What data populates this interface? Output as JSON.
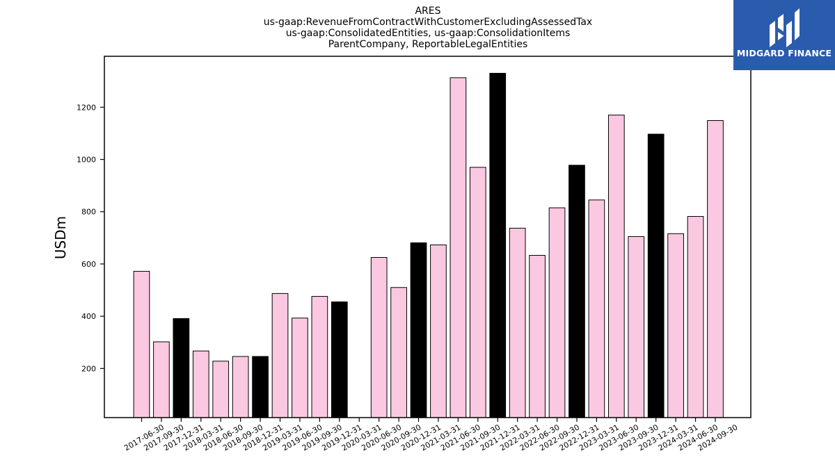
{
  "title_lines": [
    "ARES",
    "us-gaap:RevenueFromContractWithCustomerExcludingAssessedTax",
    "us-gaap:ConsolidatedEntities, us-gaap:ConsolidationItems",
    "ParentCompany, ReportableLegalEntities"
  ],
  "logo": {
    "text": "MIDGARD FINANCE",
    "bg_color": "#2a5cae",
    "icon": "midgard-logo-icon"
  },
  "chart_data": {
    "type": "bar",
    "title": "ARES\nus-gaap:RevenueFromContractWithCustomerExcludingAssessedTax\nus-gaap:ConsolidatedEntities, us-gaap:ConsolidationItems\nParentCompany, ReportableLegalEntities",
    "ylabel": "USDm",
    "xlabel": "",
    "ylim": [
      12,
      1395
    ],
    "yticks": [
      200,
      400,
      600,
      800,
      1000,
      1200
    ],
    "grid": false,
    "legend": "none",
    "colors": {
      "quarter": "#fbc8e1",
      "year_end": "#000000",
      "edge": "#000000"
    },
    "categories": [
      "2017-06-30",
      "2017-09-30",
      "2017-12-31",
      "2018-03-31",
      "2018-06-30",
      "2018-09-30",
      "2018-12-31",
      "2019-03-31",
      "2019-06-30",
      "2019-09-30",
      "2019-12-31",
      "2020-03-31",
      "2020-06-30",
      "2020-09-30",
      "2020-12-31",
      "2021-03-31",
      "2021-06-30",
      "2021-09-30",
      "2021-12-31",
      "2022-03-31",
      "2022-06-30",
      "2022-09-30",
      "2022-12-31",
      "2023-03-31",
      "2023-06-30",
      "2023-09-30",
      "2023-12-31",
      "2024-03-31",
      "2024-06-30",
      "2024-09-30"
    ],
    "values": [
      572,
      302,
      391,
      267,
      228,
      246,
      246,
      487,
      393,
      476,
      455,
      null,
      625,
      510,
      681,
      673,
      1313,
      970,
      1330,
      737,
      633,
      815,
      978,
      845,
      1170,
      705,
      1097,
      716,
      782,
      1149
    ],
    "year_end": [
      false,
      false,
      true,
      false,
      false,
      false,
      true,
      false,
      false,
      false,
      true,
      false,
      false,
      false,
      true,
      false,
      false,
      false,
      true,
      false,
      false,
      false,
      true,
      false,
      false,
      false,
      true,
      false,
      false,
      false
    ]
  }
}
